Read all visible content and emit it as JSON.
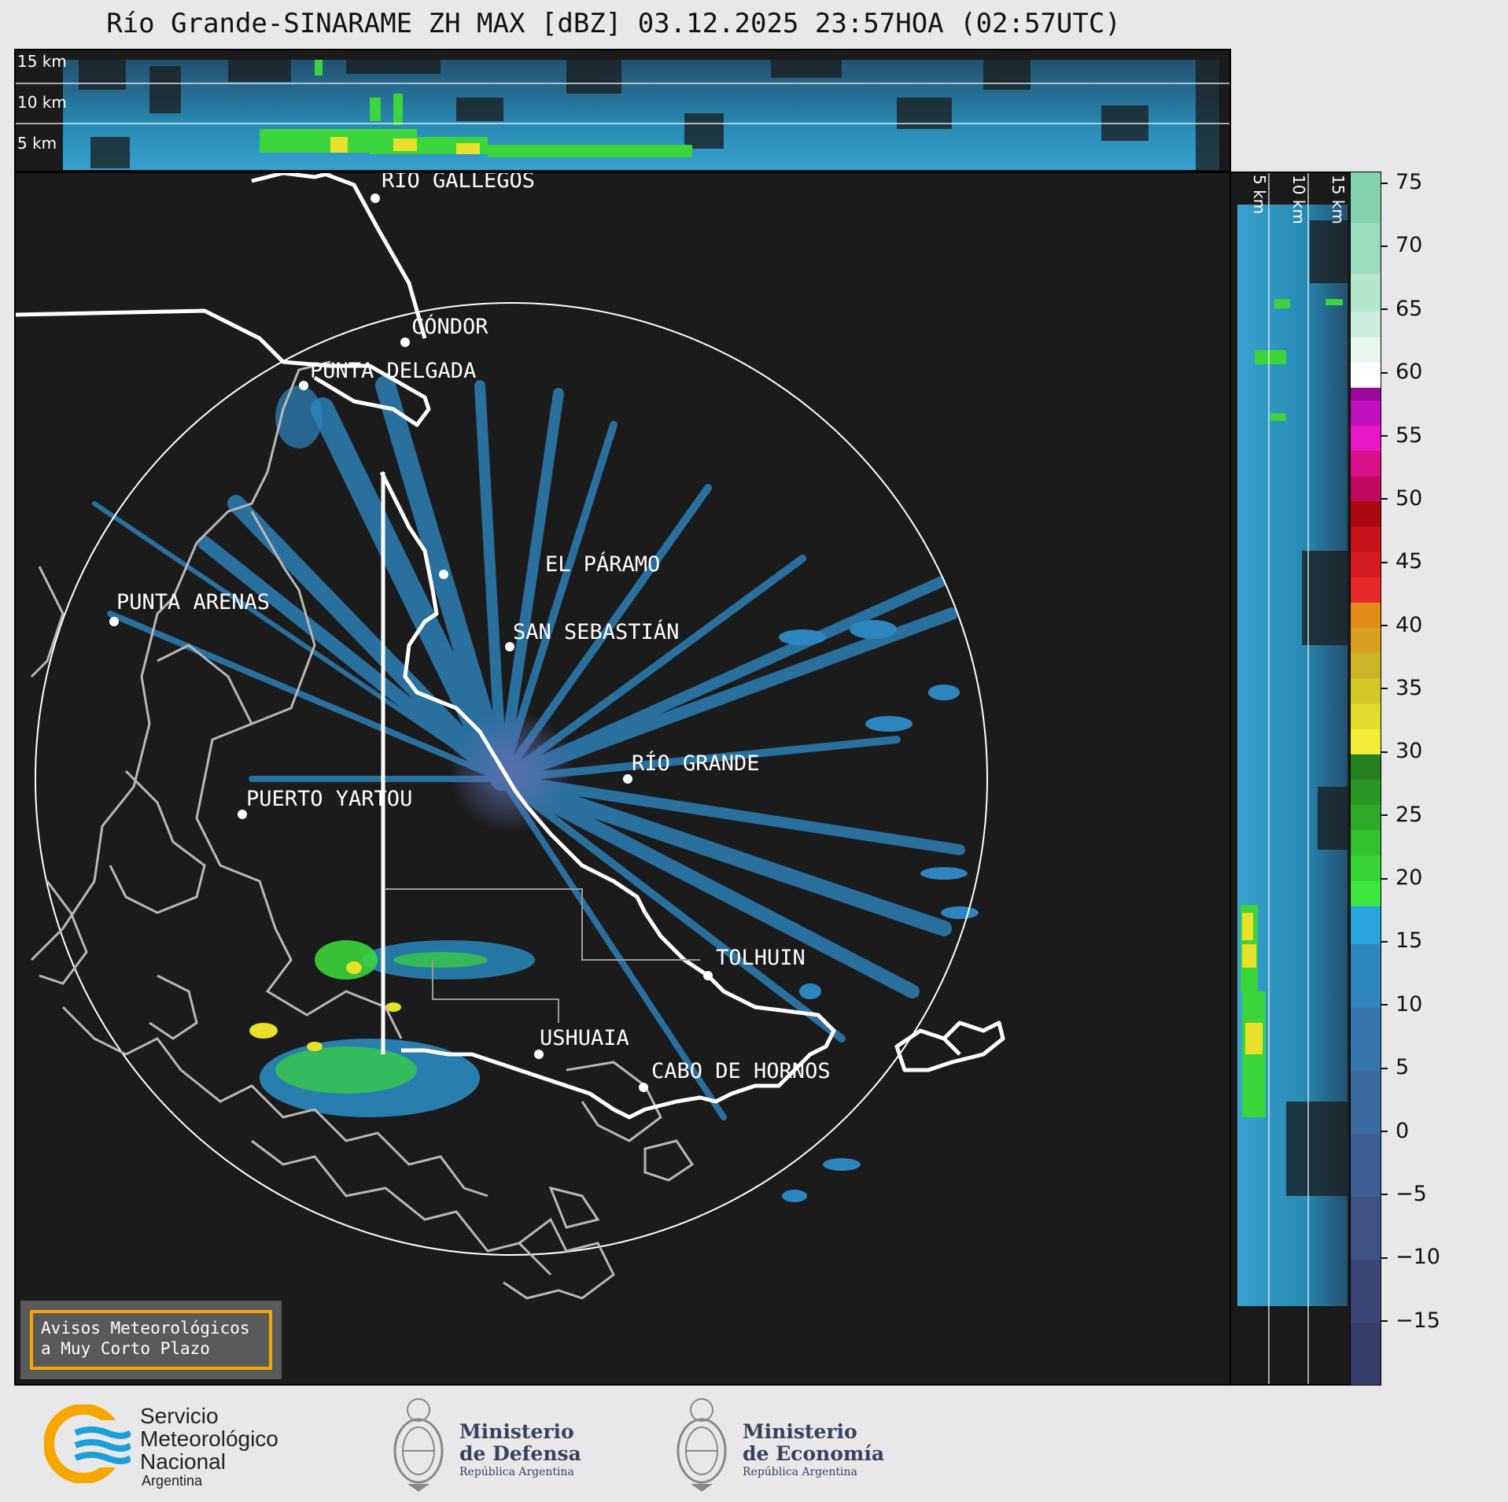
{
  "title": "Río Grande-SINARAME ZH MAX [dBZ] 03.12.2025 23:57HOA (02:57UTC)",
  "top_panel": {
    "height_labels": [
      "15 km",
      "10 km",
      "5 km"
    ]
  },
  "side_panel": {
    "height_labels": [
      "5 km",
      "10 km",
      "15 km"
    ]
  },
  "cities": [
    {
      "name": "RÍO GALLEGOS"
    },
    {
      "name": "CÓNDOR"
    },
    {
      "name": "PUNTA DELGADA"
    },
    {
      "name": "EL PÁRAMO"
    },
    {
      "name": "PUNTA ARENAS"
    },
    {
      "name": "SAN SEBASTIÁN"
    },
    {
      "name": "RÍO GRANDE"
    },
    {
      "name": "PUERTO YARTOU"
    },
    {
      "name": "TOLHUIN"
    },
    {
      "name": "USHUAIA"
    },
    {
      "name": "CABO DE HORNOS"
    }
  ],
  "colorbar": {
    "unit": "dBZ",
    "ticks": [
      "75",
      "70",
      "65",
      "60",
      "55",
      "50",
      "45",
      "40",
      "35",
      "30",
      "25",
      "20",
      "15",
      "10",
      "5",
      "0",
      "−5",
      "−10",
      "−15"
    ],
    "range": [
      -20,
      76
    ]
  },
  "notice": {
    "line1": "Avisos Meteorológicos",
    "line2": "a Muy Corto Plazo"
  },
  "logos": {
    "smn": {
      "line1": "Servicio",
      "line2": "Meteorológico",
      "line3": "Nacional",
      "line4": "Argentina",
      "color": "#1a9fd9",
      "accent": "#f5a700"
    },
    "defensa": {
      "line1": "Ministerio",
      "line2": "de Defensa",
      "line3": "República Argentina"
    },
    "economia": {
      "line1": "Ministerio",
      "line2": "de Economía",
      "line3": "República Argentina"
    }
  }
}
